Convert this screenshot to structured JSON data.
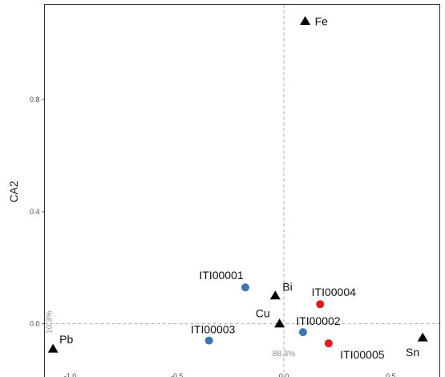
{
  "chart_data": {
    "type": "scatter",
    "title": "",
    "xlabel": "",
    "ylabel": "CA2",
    "xlim": [
      -1.12,
      0.73
    ],
    "ylim": [
      -0.19,
      1.14
    ],
    "x_ticks": [
      -1.0,
      -0.5,
      0.0,
      0.5
    ],
    "x_tick_labels": [
      "-1.0",
      "-0.5",
      "0.0",
      "0.5"
    ],
    "y_ticks": [
      0.0,
      0.4,
      0.8
    ],
    "y_tick_labels": [
      "0.0",
      "0.4",
      "0.8"
    ],
    "grid": false,
    "reference_lines": {
      "x": 0,
      "y": 0,
      "style": "dashed",
      "color": "#aaaaaa"
    },
    "inertia": {
      "dim1": "88.3%",
      "dim2": "10.3%"
    },
    "colors": {
      "triangle": "#000000",
      "blue": "#3a78b5",
      "red": "#e3191c"
    },
    "series": [
      {
        "marker": "triangle",
        "color": "#000000",
        "points": [
          {
            "label": "Fe",
            "x": 0.1,
            "y": 1.08
          },
          {
            "label": "Bi",
            "x": -0.04,
            "y": 0.1
          },
          {
            "label": "Cu",
            "x": -0.02,
            "y": 0.0
          },
          {
            "label": "Pb",
            "x": -1.08,
            "y": -0.09
          },
          {
            "label": "Sn",
            "x": 0.65,
            "y": -0.05
          }
        ]
      },
      {
        "marker": "circle",
        "color": "#3a78b5",
        "points": [
          {
            "label": "ITI00001",
            "x": -0.18,
            "y": 0.13
          },
          {
            "label": "ITI00003",
            "x": -0.35,
            "y": -0.06
          },
          {
            "label": "ITI00002",
            "x": 0.09,
            "y": -0.03
          }
        ]
      },
      {
        "marker": "circle",
        "color": "#e3191c",
        "points": [
          {
            "label": "ITI00004",
            "x": 0.17,
            "y": 0.07
          },
          {
            "label": "ITI00005",
            "x": 0.21,
            "y": -0.07
          }
        ]
      }
    ]
  }
}
